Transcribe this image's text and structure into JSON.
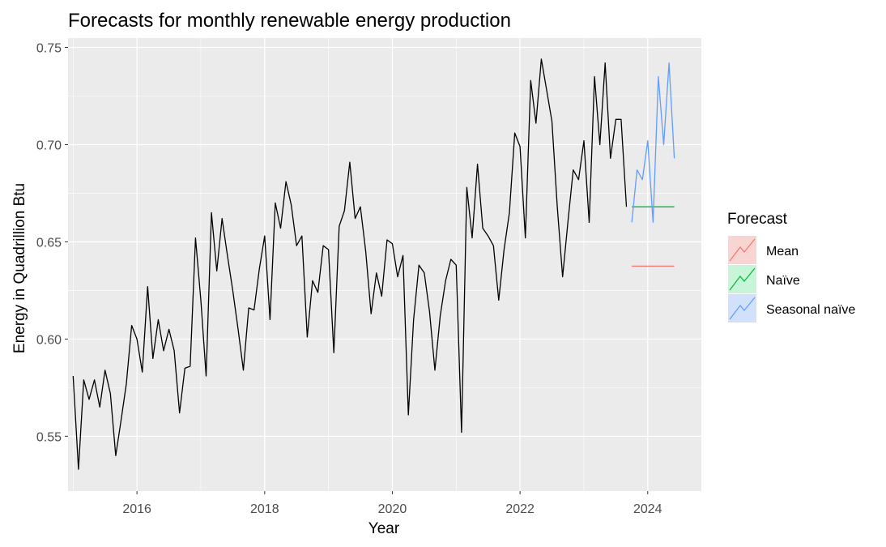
{
  "chart_data": {
    "type": "line",
    "title": "Forecasts for monthly renewable energy production",
    "xlabel": "Year",
    "ylabel": "Energy in Quadrillion Btu",
    "xlim": [
      2014.92,
      2024.84
    ],
    "ylim": [
      0.5218,
      0.7548
    ],
    "x_ticks": [
      "2016",
      "2018",
      "2020",
      "2022",
      "2024"
    ],
    "y_ticks": [
      "0.55",
      "0.60",
      "0.65",
      "0.70",
      "0.75"
    ],
    "grid": true,
    "legend": {
      "title": "Forecast",
      "position": "right",
      "entries": [
        {
          "label": "Mean",
          "color": "#F8766D"
        },
        {
          "label": "Naïve",
          "color": "#00BA38"
        },
        {
          "label": "Seasonal naïve",
          "color": "#619CFF"
        }
      ]
    },
    "observed": {
      "color": "#000000",
      "start": "2015-01",
      "values": [
        0.581,
        0.533,
        0.579,
        0.569,
        0.579,
        0.565,
        0.584,
        0.572,
        0.54,
        0.558,
        0.577,
        0.607,
        0.6,
        0.583,
        0.627,
        0.59,
        0.61,
        0.594,
        0.605,
        0.594,
        0.562,
        0.585,
        0.586,
        0.652,
        0.62,
        0.581,
        0.665,
        0.635,
        0.662,
        0.643,
        0.625,
        0.605,
        0.584,
        0.616,
        0.615,
        0.636,
        0.653,
        0.61,
        0.67,
        0.657,
        0.681,
        0.669,
        0.648,
        0.653,
        0.601,
        0.63,
        0.624,
        0.648,
        0.646,
        0.593,
        0.658,
        0.666,
        0.691,
        0.662,
        0.668,
        0.645,
        0.613,
        0.634,
        0.622,
        0.651,
        0.649,
        0.632,
        0.643,
        0.561,
        0.61,
        0.638,
        0.634,
        0.614,
        0.584,
        0.612,
        0.63,
        0.641,
        0.638,
        0.552,
        0.678,
        0.652,
        0.69,
        0.657,
        0.653,
        0.648,
        0.62,
        0.646,
        0.665,
        0.706,
        0.699,
        0.652,
        0.733,
        0.711,
        0.744,
        0.728,
        0.712,
        0.668,
        0.632,
        0.66,
        0.687,
        0.682,
        0.702,
        0.66,
        0.735,
        0.7,
        0.742,
        0.693,
        0.713,
        0.713,
        0.668
      ]
    },
    "forecasts": [
      {
        "name": "Mean",
        "color": "#F8766D",
        "start": "2023-10",
        "values": [
          0.6375,
          0.6375,
          0.6375,
          0.6375,
          0.6375,
          0.6375,
          0.6375,
          0.6375,
          0.6375
        ]
      },
      {
        "name": "Naïve",
        "color": "#00BA38",
        "start": "2023-10",
        "values": [
          0.668,
          0.668,
          0.668,
          0.668,
          0.668,
          0.668,
          0.668,
          0.668,
          0.668
        ]
      },
      {
        "name": "Seasonal naïve",
        "color": "#619CFF",
        "start": "2023-10",
        "values": [
          0.66,
          0.687,
          0.682,
          0.702,
          0.66,
          0.735,
          0.7,
          0.742,
          0.693
        ]
      }
    ]
  }
}
